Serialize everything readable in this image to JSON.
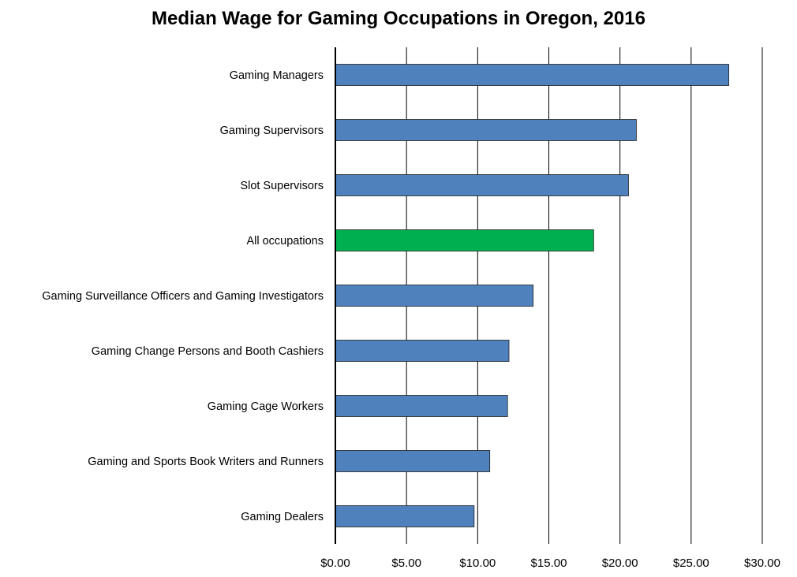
{
  "chart_data": {
    "type": "bar",
    "orientation": "horizontal",
    "title": "Median Wage for Gaming Occupations in Oregon, 2016",
    "xlabel": "",
    "ylabel": "",
    "xlim": [
      0,
      30
    ],
    "x_ticks": [
      0,
      5,
      10,
      15,
      20,
      25,
      30
    ],
    "x_tick_labels": [
      "$0.00",
      "$5.00",
      "$10.00",
      "$15.00",
      "$20.00",
      "$25.00",
      "$30.00"
    ],
    "grid": "vertical gridlines on",
    "legend": "none",
    "categories": [
      "Gaming Managers",
      "Gaming Supervisors",
      "Slot Supervisors",
      "All occupations",
      "Gaming Surveillance Officers and Gaming Investigators",
      "Gaming Change Persons and Booth Cashiers",
      "Gaming Cage Workers",
      "Gaming and Sports Book Writers and Runners",
      "Gaming Dealers"
    ],
    "values": [
      27.65,
      21.15,
      20.6,
      18.15,
      13.9,
      12.2,
      12.1,
      10.85,
      9.75
    ],
    "bar_colors": [
      "#4f81bd",
      "#4f81bd",
      "#4f81bd",
      "#00b050",
      "#4f81bd",
      "#4f81bd",
      "#4f81bd",
      "#4f81bd",
      "#4f81bd"
    ]
  }
}
